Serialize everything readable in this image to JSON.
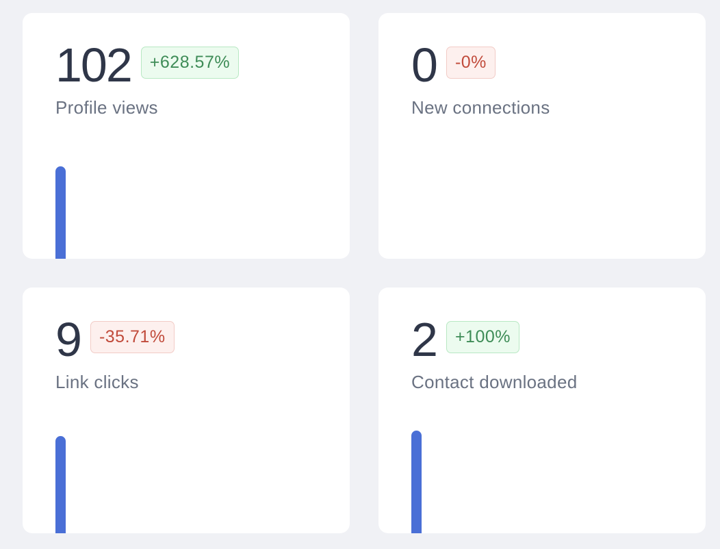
{
  "accent_color": "#4a6fd6",
  "positive_color": "#3e8c57",
  "negative_color": "#c14b3b",
  "metrics": [
    {
      "value": "102",
      "change": "+628.57%",
      "trend": "up",
      "label": "Profile views",
      "bar_level": 0.9
    },
    {
      "value": "0",
      "change": "-0%",
      "trend": "down",
      "label": "New connections",
      "bar_level": 0
    },
    {
      "value": "9",
      "change": "-35.71%",
      "trend": "down",
      "label": "Link clicks",
      "bar_level": 0.95
    },
    {
      "value": "2",
      "change": "+100%",
      "trend": "up",
      "label": "Contact downloaded",
      "bar_level": 1.0
    }
  ]
}
